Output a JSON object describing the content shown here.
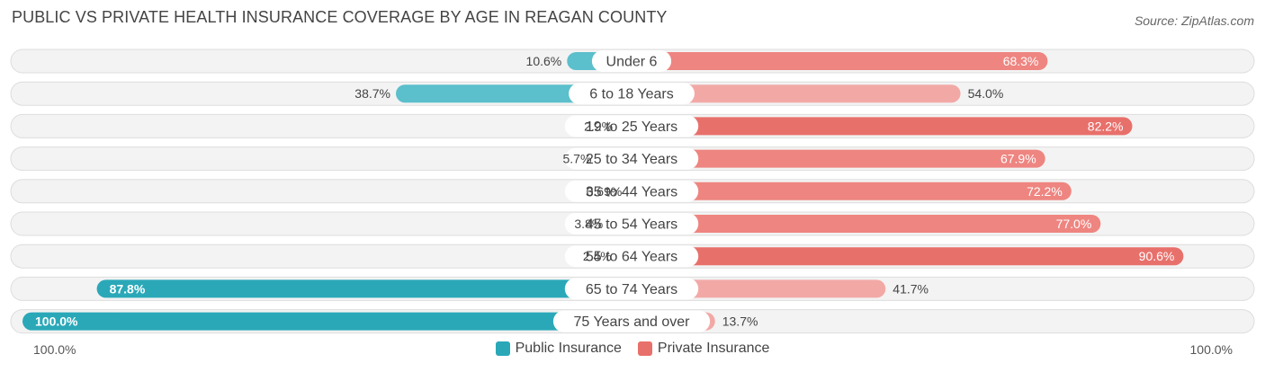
{
  "header": {
    "title": "PUBLIC VS PRIVATE HEALTH INSURANCE COVERAGE BY AGE IN REAGAN COUNTY",
    "source": "Source: ZipAtlas.com"
  },
  "colors": {
    "public": "#5bbfcc",
    "public_strong": "#2aa8b8",
    "private": "#ee8b87",
    "private_strong": "#e8706b",
    "track": "#f0f0f0",
    "track_border": "#dddddd"
  },
  "legend": {
    "public_label": "Public Insurance",
    "private_label": "Private Insurance"
  },
  "axis": {
    "left_label": "100.0%",
    "right_label": "100.0%"
  },
  "chart_data": {
    "type": "bar",
    "orientation": "horizontal-diverging",
    "title": "PUBLIC VS PRIVATE HEALTH INSURANCE COVERAGE BY AGE IN REAGAN COUNTY",
    "categories": [
      "Under 6",
      "6 to 18 Years",
      "19 to 25 Years",
      "25 to 34 Years",
      "35 to 44 Years",
      "45 to 54 Years",
      "55 to 64 Years",
      "65 to 74 Years",
      "75 Years and over"
    ],
    "series": [
      {
        "name": "Public Insurance",
        "values": [
          10.6,
          38.7,
          2.2,
          5.7,
          0.69,
          3.8,
          2.4,
          87.8,
          100.0
        ],
        "labels": [
          "10.6%",
          "38.7%",
          "2.2%",
          "5.7%",
          "0.69%",
          "3.8%",
          "2.4%",
          "87.8%",
          "100.0%"
        ]
      },
      {
        "name": "Private Insurance",
        "values": [
          68.3,
          54.0,
          82.2,
          67.9,
          72.2,
          77.0,
          90.6,
          41.7,
          13.7
        ],
        "labels": [
          "68.3%",
          "54.0%",
          "82.2%",
          "67.9%",
          "72.2%",
          "77.0%",
          "90.6%",
          "41.7%",
          "13.7%"
        ]
      }
    ],
    "xlim": [
      -100,
      100
    ],
    "legend_position": "bottom-center"
  }
}
